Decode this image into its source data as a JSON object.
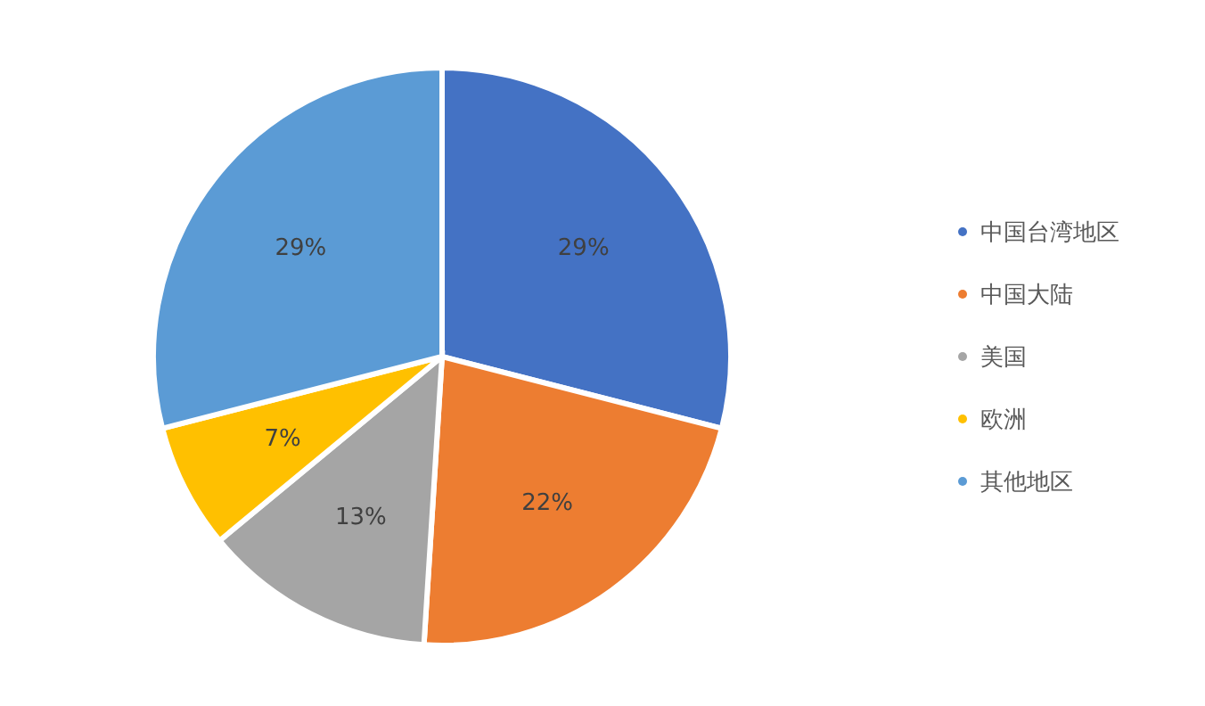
{
  "chart_data": {
    "type": "pie",
    "categories": [
      "中国台湾地区",
      "中国大陆",
      "美国",
      "欧洲",
      "其他地区"
    ],
    "values": [
      29,
      22,
      13,
      7,
      29
    ],
    "colors": [
      "#4472c4",
      "#ed7d31",
      "#a5a5a5",
      "#ffc000",
      "#5b9bd5"
    ],
    "value_labels": [
      "29%",
      "22%",
      "13%",
      "7%",
      "29%"
    ],
    "legend": "right"
  }
}
